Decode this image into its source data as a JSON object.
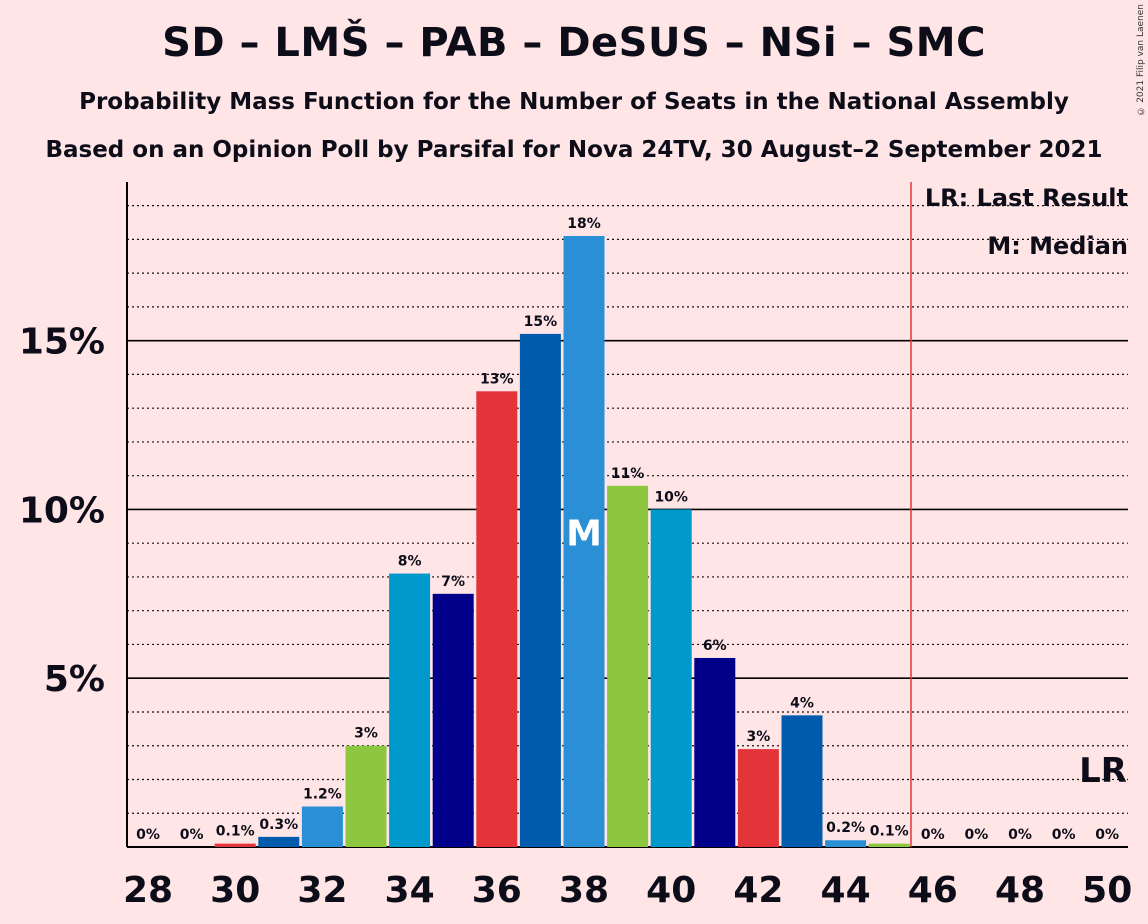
{
  "title": "SD – LMŠ – PAB – DeSUS – NSi – SMC",
  "subtitle": "Probability Mass Function for the Number of Seats in the National Assembly",
  "subtitle2": "Based on an Opinion Poll by Parsifal for Nova 24TV, 30 August–2 September 2021",
  "copyright": "© 2021 Filip van Laenen",
  "legend": {
    "last_result": "LR: Last Result",
    "median": "M: Median"
  },
  "markers": {
    "median_label": "M",
    "last_result_label": "LR"
  },
  "chart_data": {
    "type": "bar",
    "x": [
      28,
      29,
      30,
      31,
      32,
      33,
      34,
      35,
      36,
      37,
      38,
      39,
      40,
      41,
      42,
      43,
      44,
      45,
      46,
      47,
      48,
      49,
      50
    ],
    "values": [
      0,
      0,
      0.1,
      0.3,
      1.2,
      3.0,
      8.1,
      7.5,
      13.5,
      15.2,
      18.1,
      10.7,
      10.0,
      5.6,
      2.9,
      3.9,
      0.2,
      0.1,
      0,
      0,
      0,
      0,
      0
    ],
    "labels": [
      "0%",
      "0%",
      "0.1%",
      "0.3%",
      "1.2%",
      "3%",
      "8%",
      "7%",
      "13%",
      "15%",
      "18%",
      "11%",
      "10%",
      "6%",
      "3%",
      "4%",
      "0.2%",
      "0.1%",
      "0%",
      "0%",
      "0%",
      "0%",
      "0%"
    ],
    "colors": [
      "#E3343A",
      "#E3343A",
      "#E3343A",
      "#005BAC",
      "#2A8FD4",
      "#8DC63F",
      "#0099CC",
      "#00008B",
      "#E3343A",
      "#005BAC",
      "#2A8FD4",
      "#8DC63F",
      "#0099CC",
      "#00008B",
      "#E3343A",
      "#005BAC",
      "#2A8FD4",
      "#8DC63F",
      "#0099CC",
      "#00008B",
      "#E3343A",
      "#005BAC",
      "#2A8FD4"
    ],
    "x_tick_labels": [
      "28",
      "30",
      "32",
      "34",
      "36",
      "38",
      "40",
      "42",
      "44",
      "46",
      "48",
      "50"
    ],
    "y_ticks": [
      {
        "value": 5,
        "label": "5%"
      },
      {
        "value": 10,
        "label": "10%"
      },
      {
        "value": 15,
        "label": "15%"
      }
    ],
    "ylim": [
      0,
      19.7
    ],
    "minor_gridlines_every": 1,
    "median_seat": 38,
    "last_result_seat": 45.5,
    "last_result_line_color": "#E3343A"
  }
}
